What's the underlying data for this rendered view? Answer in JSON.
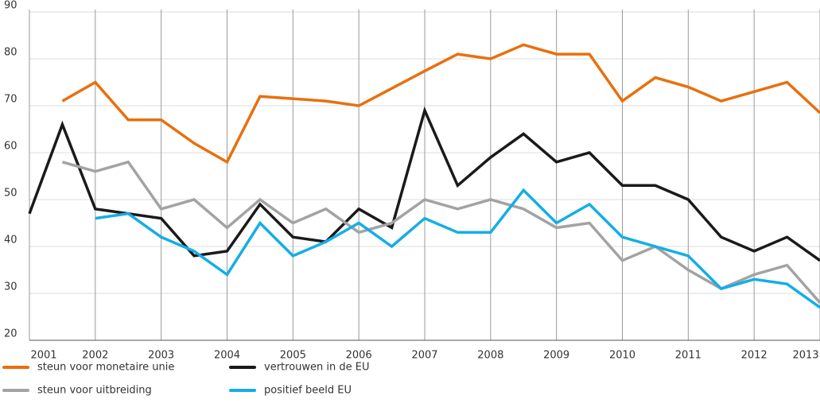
{
  "chart_data": {
    "type": "line",
    "x": [
      2001,
      2001.5,
      2002,
      2002.5,
      2003,
      2003.5,
      2004,
      2004.5,
      2005,
      2005.5,
      2006,
      2006.5,
      2007,
      2007.5,
      2008,
      2008.5,
      2009,
      2009.5,
      2010,
      2010.5,
      2011,
      2011.5,
      2012,
      2012.5,
      2013
    ],
    "series": [
      {
        "name": "steun voor monetaire unie",
        "color": "#e8700e",
        "values": [
          null,
          71,
          75,
          67,
          67,
          62,
          58,
          72,
          71.5,
          71,
          70,
          73.7,
          77.4,
          81,
          80,
          83,
          81,
          81,
          71,
          76,
          74,
          71,
          73,
          75,
          68.5
        ]
      },
      {
        "name": "vertrouwen in de EU",
        "color": "#1a1a1a",
        "values": [
          47,
          66,
          48,
          47,
          46,
          38,
          39,
          49,
          42,
          41,
          48,
          44,
          69,
          53,
          59,
          64,
          58,
          60,
          53,
          53,
          50,
          42,
          39,
          42,
          37
        ]
      },
      {
        "name": "steun voor uitbreiding",
        "color": "#a3a3a3",
        "values": [
          null,
          58,
          56,
          58,
          48,
          50,
          44,
          50,
          45,
          48,
          43,
          45,
          50,
          48,
          50,
          48,
          44,
          45,
          37,
          40,
          35,
          31,
          34,
          36,
          28
        ]
      },
      {
        "name": "positief beeld EU",
        "color": "#14aee6",
        "values": [
          null,
          null,
          46,
          47,
          42,
          39,
          34,
          45,
          38,
          41,
          45,
          40,
          46,
          43,
          43,
          52,
          45,
          49,
          42,
          40,
          38,
          31,
          33,
          32,
          27
        ]
      }
    ],
    "xlim": [
      2001,
      2013
    ],
    "xticks": [
      2001,
      2002,
      2003,
      2004,
      2005,
      2006,
      2007,
      2008,
      2009,
      2010,
      2011,
      2012,
      2013
    ],
    "ylim": [
      20,
      90
    ],
    "yticks": [
      20,
      30,
      40,
      50,
      60,
      70,
      80,
      90
    ],
    "grid": true
  }
}
